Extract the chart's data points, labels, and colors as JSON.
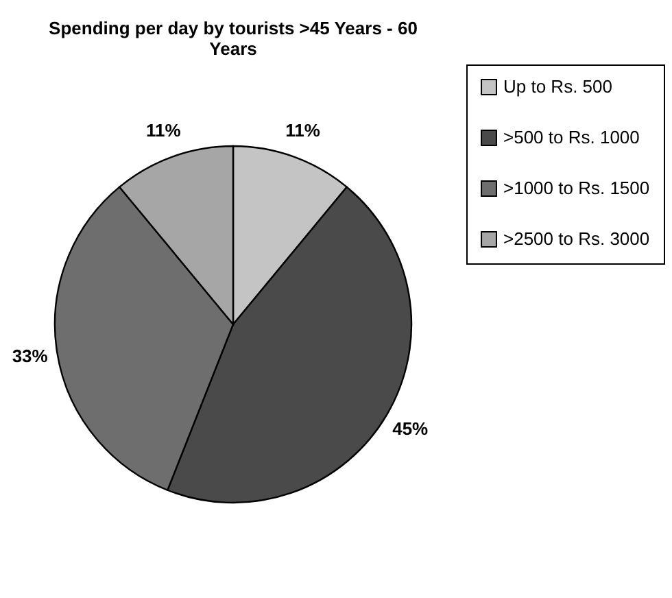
{
  "chart_data": {
    "type": "pie",
    "title": "Spending per day by tourists >45 Years - 60 Years",
    "categories": [
      "Up to Rs. 500",
      ">500 to Rs. 1000",
      ">1000 to Rs. 1500",
      ">2500 to Rs. 3000"
    ],
    "values": [
      11,
      45,
      33,
      11
    ],
    "value_labels": [
      "11%",
      "45%",
      "33%",
      "11%"
    ],
    "colors": [
      "#c4c4c4",
      "#4a4a4a",
      "#6e6e6e",
      "#a6a6a6"
    ],
    "legend": "right"
  }
}
